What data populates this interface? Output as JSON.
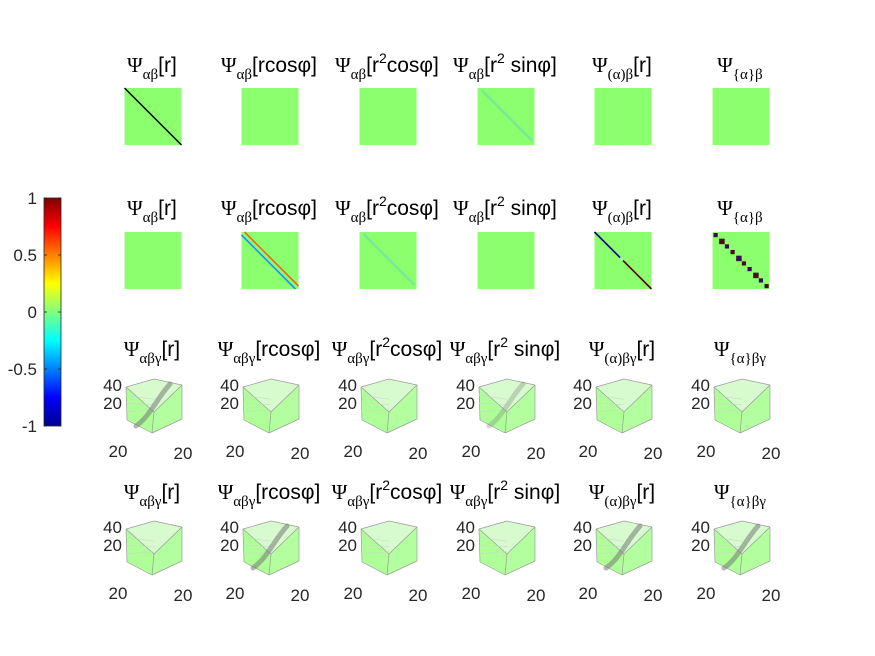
{
  "figure": {
    "rows": [
      {
        "kind": "matrix",
        "panels": [
          {
            "base": "Ψ",
            "sub": "αβ",
            "arg": "[r]",
            "sup": "",
            "tail": "",
            "pattern": "diag",
            "strength": 1.0,
            "color": "#000000"
          },
          {
            "base": "Ψ",
            "sub": "αβ",
            "arg": "[rcos",
            "sup": "",
            "tail": "φ]",
            "pattern": "none",
            "strength": 0,
            "color": "#000000"
          },
          {
            "base": "Ψ",
            "sub": "αβ",
            "arg": "[r",
            "sup": "2",
            "tail": "cosφ]",
            "pattern": "none",
            "strength": 0,
            "color": "#000000"
          },
          {
            "base": "Ψ",
            "sub": "αβ",
            "arg": "[r",
            "sup": "2",
            "tail": " sinφ]",
            "pattern": "faint-diag",
            "strength": 0.3,
            "color": "#5ad1c6"
          },
          {
            "base": "Ψ",
            "sub": "(α)β",
            "arg": "[r]",
            "sup": "",
            "tail": "",
            "pattern": "none",
            "strength": 0,
            "color": "#000000"
          },
          {
            "base": "Ψ",
            "sub": "{α}β",
            "arg": "",
            "sup": "",
            "tail": "",
            "pattern": "none",
            "strength": 0,
            "color": "#000000"
          }
        ]
      },
      {
        "kind": "matrix",
        "panels": [
          {
            "base": "Ψ",
            "sub": "αβ",
            "arg": "[r]",
            "sup": "",
            "tail": "",
            "pattern": "none",
            "strength": 0,
            "color": "#000000"
          },
          {
            "base": "Ψ",
            "sub": "αβ",
            "arg": "[rcos",
            "sup": "",
            "tail": "φ]",
            "pattern": "bands",
            "strength": 0.8,
            "color": "#e66a1e"
          },
          {
            "base": "Ψ",
            "sub": "αβ",
            "arg": "[r",
            "sup": "2",
            "tail": "cosφ]",
            "pattern": "faint-diag",
            "strength": 0.3,
            "color": "#5ad1c6"
          },
          {
            "base": "Ψ",
            "sub": "αβ",
            "arg": "[r",
            "sup": "2",
            "tail": " sinφ]",
            "pattern": "none",
            "strength": 0,
            "color": "#000000"
          },
          {
            "base": "Ψ",
            "sub": "(α)β",
            "arg": "[r]",
            "sup": "",
            "tail": "",
            "pattern": "split-diag",
            "strength": 1.0,
            "color": "#000033"
          },
          {
            "base": "Ψ",
            "sub": "{α}β",
            "arg": "",
            "sup": "",
            "tail": "",
            "pattern": "blocks",
            "strength": 1.0,
            "color": "#3a0a4a"
          }
        ]
      },
      {
        "kind": "cube",
        "panels": [
          {
            "base": "Ψ",
            "sub": "αβγ",
            "arg": "[r]",
            "sup": "",
            "tail": "",
            "streak": 0.9
          },
          {
            "base": "Ψ",
            "sub": "αβγ",
            "arg": "[rcos",
            "sup": "",
            "tail": "φ]",
            "streak": 0
          },
          {
            "base": "Ψ",
            "sub": "αβγ",
            "arg": "[r",
            "sup": "2",
            "tail": "cosφ]",
            "streak": 0
          },
          {
            "base": "Ψ",
            "sub": "αβγ",
            "arg": "[r",
            "sup": "2",
            "tail": " sinφ]",
            "streak": 0.25
          },
          {
            "base": "Ψ",
            "sub": "(α)βγ",
            "arg": "[r]",
            "sup": "",
            "tail": "",
            "streak": 0
          },
          {
            "base": "Ψ",
            "sub": "{α}βγ",
            "arg": "",
            "sup": "",
            "tail": "",
            "streak": 0
          }
        ]
      },
      {
        "kind": "cube",
        "panels": [
          {
            "base": "Ψ",
            "sub": "αβγ",
            "arg": "[r]",
            "sup": "",
            "tail": "",
            "streak": 0
          },
          {
            "base": "Ψ",
            "sub": "αβγ",
            "arg": "[rcos",
            "sup": "",
            "tail": "φ]",
            "streak": 0.9
          },
          {
            "base": "Ψ",
            "sub": "αβγ",
            "arg": "[r",
            "sup": "2",
            "tail": "cosφ]",
            "streak": 0
          },
          {
            "base": "Ψ",
            "sub": "αβγ",
            "arg": "[r",
            "sup": "2",
            "tail": " sinφ]",
            "streak": 0
          },
          {
            "base": "Ψ",
            "sub": "(α)βγ",
            "arg": "[r]",
            "sup": "",
            "tail": "",
            "streak": 0.9
          },
          {
            "base": "Ψ",
            "sub": "{α}βγ",
            "arg": "",
            "sup": "",
            "tail": "",
            "streak": 0.9
          }
        ]
      }
    ],
    "cube_ticks": {
      "vertical": [
        "40",
        "20"
      ],
      "left_base": "20",
      "right_base": "20"
    },
    "background_color": "#8cff6e"
  },
  "chart_data": {
    "type": "heatmap",
    "colormap": "jet",
    "colorbar": {
      "ticks": [
        1,
        0.5,
        0,
        -0.5,
        -1
      ],
      "tick_labels": [
        "1",
        "0.5",
        "0",
        "-0.5",
        "-1"
      ],
      "range": [
        -1,
        1
      ]
    },
    "background_value": 0.15,
    "grid": false
  }
}
